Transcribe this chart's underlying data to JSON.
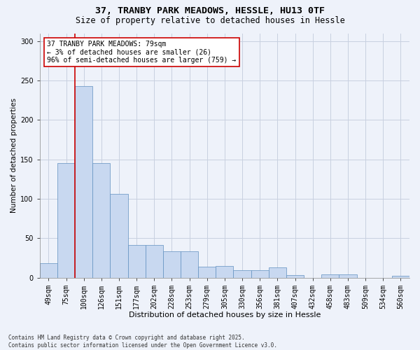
{
  "title_line1": "37, TRANBY PARK MEADOWS, HESSLE, HU13 0TF",
  "title_line2": "Size of property relative to detached houses in Hessle",
  "xlabel": "Distribution of detached houses by size in Hessle",
  "ylabel": "Number of detached properties",
  "categories": [
    "49sqm",
    "75sqm",
    "100sqm",
    "126sqm",
    "151sqm",
    "177sqm",
    "202sqm",
    "228sqm",
    "253sqm",
    "279sqm",
    "305sqm",
    "330sqm",
    "356sqm",
    "381sqm",
    "407sqm",
    "432sqm",
    "458sqm",
    "483sqm",
    "509sqm",
    "534sqm",
    "560sqm"
  ],
  "values": [
    18,
    145,
    243,
    145,
    106,
    41,
    41,
    33,
    33,
    14,
    15,
    9,
    9,
    13,
    3,
    0,
    4,
    4,
    0,
    0,
    2
  ],
  "bar_color": "#c8d8f0",
  "bar_edge_color": "#6090c0",
  "grid_color": "#c8d0e0",
  "background_color": "#eef2fa",
  "vline_x": 1.5,
  "vline_color": "#cc0000",
  "annotation_text": "37 TRANBY PARK MEADOWS: 79sqm\n← 3% of detached houses are smaller (26)\n96% of semi-detached houses are larger (759) →",
  "annotation_box_color": "#ffffff",
  "annotation_box_edge": "#cc0000",
  "annotation_fontsize": 7.0,
  "footnote": "Contains HM Land Registry data © Crown copyright and database right 2025.\nContains public sector information licensed under the Open Government Licence v3.0.",
  "ylim": [
    0,
    310
  ],
  "yticks": [
    0,
    50,
    100,
    150,
    200,
    250,
    300
  ],
  "title_fontsize": 9.5,
  "subtitle_fontsize": 8.5,
  "xlabel_fontsize": 8.0,
  "ylabel_fontsize": 7.5,
  "tick_fontsize": 7.0,
  "footnote_fontsize": 5.5
}
